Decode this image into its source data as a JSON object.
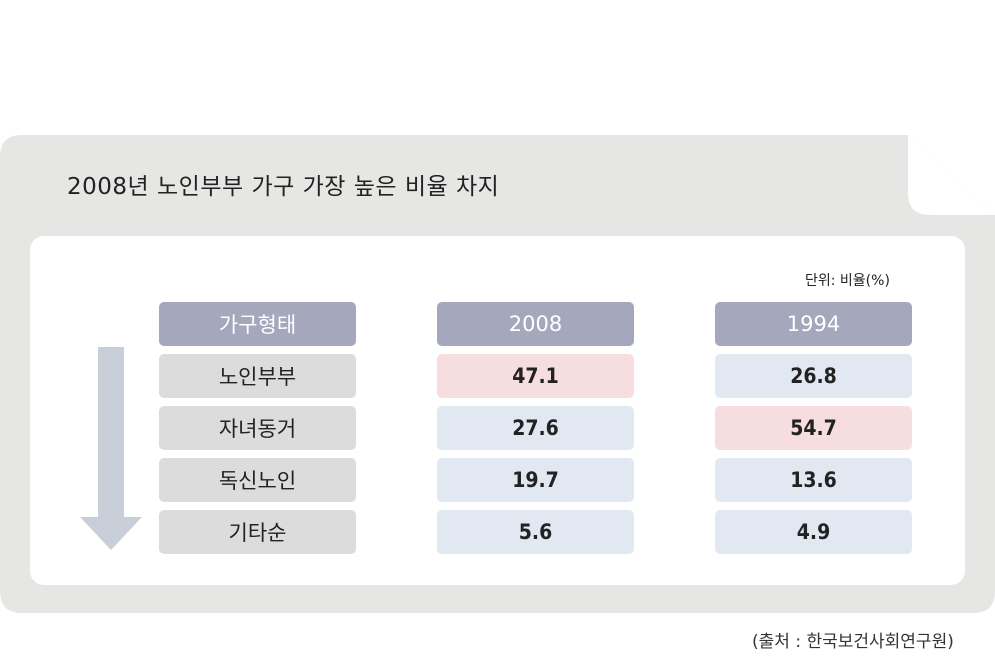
{
  "title": "2008년 노인부부 가구 가장 높은 비율 차지",
  "unit": "단위: 비율(%)",
  "source": "(출처 : 한국보건사회연구원)",
  "colors": {
    "card_bg": "#e6e6e4",
    "header_bg": "#a5a7bd",
    "label_bg": "#dcdcdc",
    "value_bg": "#e2e8f2",
    "highlight_bg": "#f6dddf",
    "arrow": "#c9cfd9"
  },
  "chart_data": {
    "type": "table",
    "columns": [
      "가구형태",
      "2008",
      "1994"
    ],
    "rows": [
      {
        "label": "노인부부",
        "v2008": "47.1",
        "v1994": "26.8",
        "highlight": "2008"
      },
      {
        "label": "자녀동거",
        "v2008": "27.6",
        "v1994": "54.7",
        "highlight": "1994"
      },
      {
        "label": "독신노인",
        "v2008": "19.7",
        "v1994": "13.6",
        "highlight": ""
      },
      {
        "label": "기타순",
        "v2008": "5.6",
        "v1994": "4.9",
        "highlight": ""
      }
    ],
    "sort_indicator": "down-arrow"
  }
}
